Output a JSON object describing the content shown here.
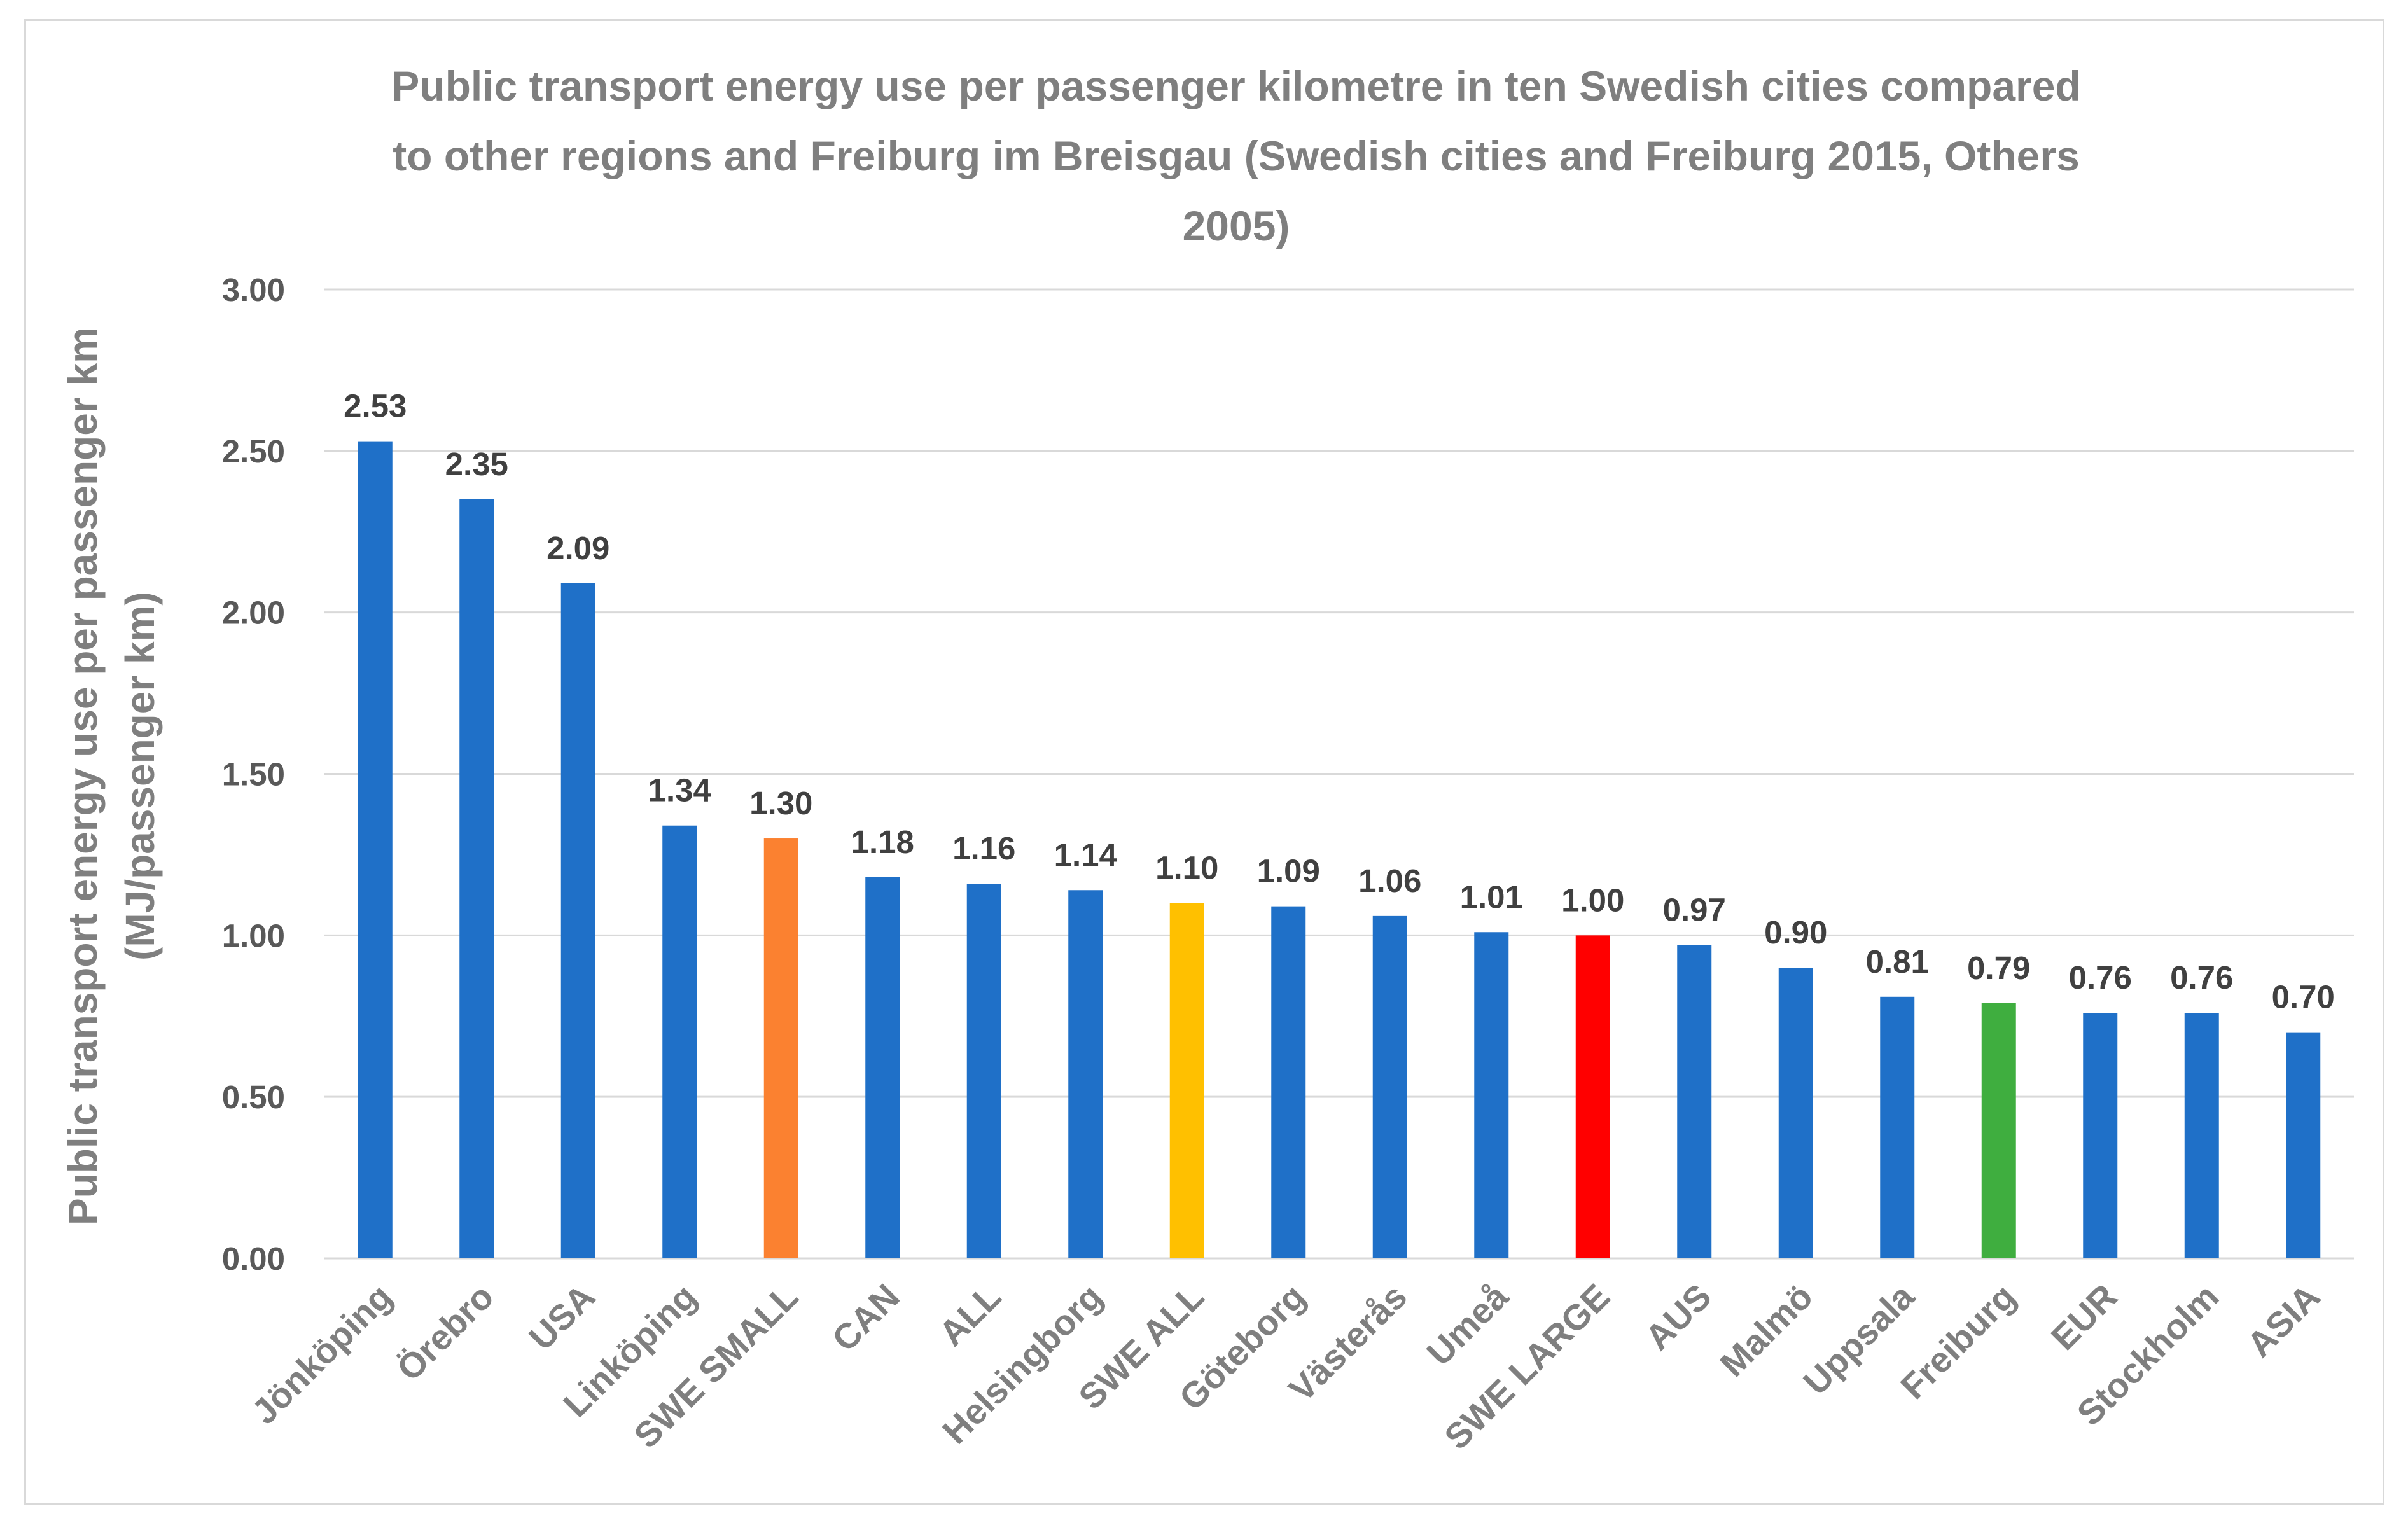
{
  "chart_data": {
    "type": "bar",
    "title_lines": [
      "Public transport energy use per passenger kilometre in ten Swedish cities compared",
      "to other regions and Freiburg im Breisgau (Swedish cities and Freiburg 2015, Others",
      "2005)"
    ],
    "ylabel_lines": [
      "Public transport energy use per passenger km",
      "(MJ/passenger km)"
    ],
    "xlabel": "",
    "ylim": [
      0,
      3
    ],
    "yticks": [
      "0.00",
      "0.50",
      "1.00",
      "1.50",
      "2.00",
      "2.50",
      "3.00"
    ],
    "grid": true,
    "categories": [
      "Jönköping",
      "Örebro",
      "USA",
      "Linköping",
      "SWE SMALL",
      "CAN",
      "ALL",
      "Helsingborg",
      "SWE ALL",
      "Göteborg",
      "Västerås",
      "Umeå",
      "SWE LARGE",
      "AUS",
      "Malmö",
      "Uppsala",
      "Freiburg",
      "EUR",
      "Stockholm",
      "ASIA"
    ],
    "values": [
      2.53,
      2.35,
      2.09,
      1.34,
      1.3,
      1.18,
      1.16,
      1.14,
      1.1,
      1.09,
      1.06,
      1.01,
      1.0,
      0.97,
      0.9,
      0.81,
      0.79,
      0.76,
      0.76,
      0.7
    ],
    "value_labels": [
      "2.53",
      "2.35",
      "2.09",
      "1.34",
      "1.30",
      "1.18",
      "1.16",
      "1.14",
      "1.10",
      "1.09",
      "1.06",
      "1.01",
      "1.00",
      "0.97",
      "0.90",
      "0.81",
      "0.79",
      "0.76",
      "0.76",
      "0.70"
    ],
    "bar_colors": [
      "#1f70c8",
      "#1f70c8",
      "#1f70c8",
      "#1f70c8",
      "#fb8130",
      "#1f70c8",
      "#1f70c8",
      "#1f70c8",
      "#ffc000",
      "#1f70c8",
      "#1f70c8",
      "#1f70c8",
      "#ff0000",
      "#1f70c8",
      "#1f70c8",
      "#1f70c8",
      "#3fae3f",
      "#1f70c8",
      "#1f70c8",
      "#1f70c8"
    ]
  }
}
